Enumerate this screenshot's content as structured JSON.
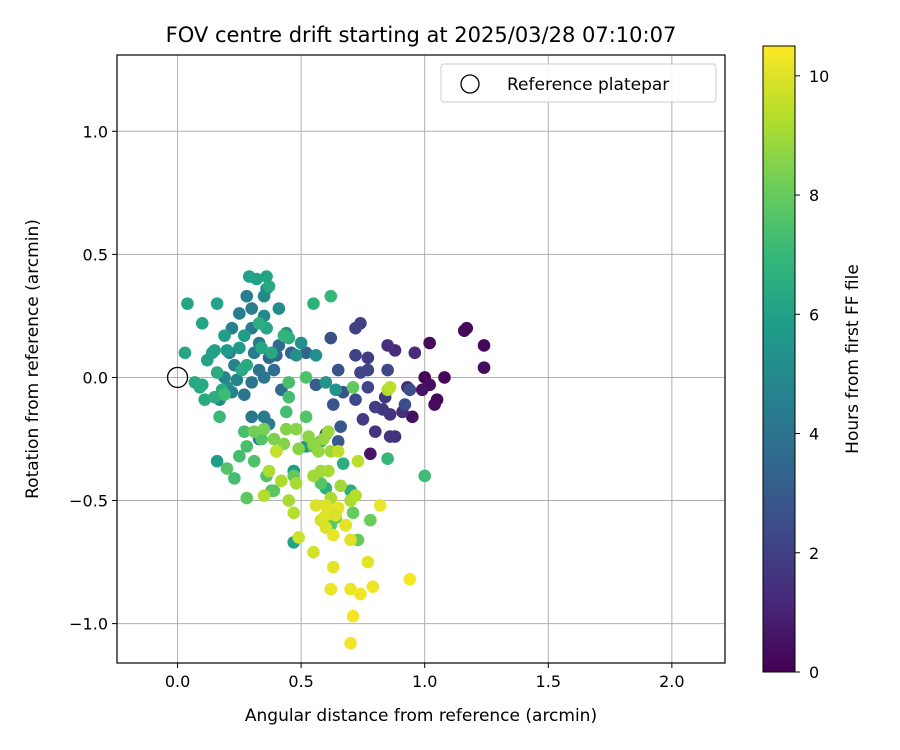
{
  "chart_data": {
    "type": "scatter",
    "title": "FOV centre drift starting at 2025/03/28 07:10:07",
    "xlabel": "Angular distance from reference (arcmin)",
    "ylabel": "Rotation from reference (arcmin)",
    "xlim": [
      -0.245,
      2.215
    ],
    "ylim": [
      -1.16,
      1.31
    ],
    "x_ticks": [
      0.0,
      0.5,
      1.0,
      1.5,
      2.0
    ],
    "x_tick_labels": [
      "0.0",
      "0.5",
      "1.0",
      "1.5",
      "2.0"
    ],
    "y_ticks": [
      -1.0,
      -0.5,
      0.0,
      0.5,
      1.0
    ],
    "y_tick_labels": [
      "−1.0",
      "−0.5",
      "0.0",
      "0.5",
      "1.0"
    ],
    "grid": true,
    "legend": {
      "placement": "top-right",
      "entries": [
        "Reference platepar"
      ]
    },
    "reference_point": {
      "x": 0.0,
      "y": 0.0
    },
    "colorbar": {
      "label": "Hours from first FF file",
      "colormap": "viridis",
      "range": [
        0,
        10.5
      ],
      "ticks": [
        0,
        2,
        4,
        6,
        8,
        10
      ],
      "tick_labels": [
        "0",
        "2",
        "4",
        "6",
        "8",
        "10"
      ]
    },
    "colormap_stops": [
      "#440154",
      "#482878",
      "#3e4989",
      "#31688e",
      "#26828e",
      "#1f9e89",
      "#35b779",
      "#6ece58",
      "#b5de2b",
      "#fde725"
    ],
    "points": [
      [
        1.0,
        0.0,
        0.1
      ],
      [
        1.05,
        -0.09,
        0.2
      ],
      [
        1.04,
        -0.11,
        0.3
      ],
      [
        1.08,
        0.0,
        0.2
      ],
      [
        1.02,
        0.14,
        0.3
      ],
      [
        1.16,
        0.19,
        0.3
      ],
      [
        1.17,
        0.2,
        0.2
      ],
      [
        1.24,
        0.13,
        0.2
      ],
      [
        1.24,
        0.04,
        0.3
      ],
      [
        0.95,
        -0.16,
        0.4
      ],
      [
        1.02,
        -0.03,
        0.4
      ],
      [
        0.99,
        -0.05,
        0.5
      ],
      [
        0.78,
        -0.31,
        0.6
      ],
      [
        0.93,
        -0.04,
        1.3
      ],
      [
        0.96,
        0.1,
        1.3
      ],
      [
        0.88,
        0.11,
        1.3
      ],
      [
        0.85,
        0.13,
        1.4
      ],
      [
        0.91,
        -0.14,
        1.4
      ],
      [
        0.88,
        -0.24,
        1.5
      ],
      [
        0.8,
        -0.22,
        1.6
      ],
      [
        0.86,
        -0.24,
        1.6
      ],
      [
        0.86,
        -0.15,
        1.6
      ],
      [
        0.83,
        -0.13,
        1.7
      ],
      [
        0.84,
        -0.08,
        1.7
      ],
      [
        0.8,
        -0.12,
        1.9
      ],
      [
        0.75,
        -0.17,
        1.8
      ],
      [
        0.77,
        0.08,
        1.9
      ],
      [
        0.72,
        0.2,
        2.0
      ],
      [
        0.74,
        0.22,
        2.0
      ],
      [
        0.72,
        0.09,
        2.1
      ],
      [
        0.74,
        0.02,
        2.2
      ],
      [
        0.77,
        0.03,
        2.2
      ],
      [
        0.77,
        -0.04,
        2.2
      ],
      [
        0.72,
        -0.09,
        2.3
      ],
      [
        0.85,
        0.03,
        2.3
      ],
      [
        0.92,
        -0.11,
        2.5
      ],
      [
        0.94,
        -0.05,
        2.5
      ],
      [
        0.62,
        0.16,
        2.6
      ],
      [
        0.65,
        0.03,
        2.7
      ],
      [
        0.67,
        -0.06,
        2.7
      ],
      [
        0.63,
        -0.11,
        2.8
      ],
      [
        0.66,
        -0.2,
        2.9
      ],
      [
        0.65,
        -0.26,
        2.9
      ],
      [
        0.6,
        -0.23,
        3.0
      ],
      [
        0.56,
        -0.03,
        3.1
      ],
      [
        0.52,
        0.1,
        3.3
      ],
      [
        0.46,
        0.1,
        3.4
      ],
      [
        0.4,
        0.09,
        3.5
      ],
      [
        0.37,
        0.08,
        3.5
      ],
      [
        0.41,
        0.13,
        3.6
      ],
      [
        0.39,
        0.03,
        3.7
      ],
      [
        0.42,
        -0.05,
        3.7
      ],
      [
        0.33,
        0.03,
        4.0
      ],
      [
        0.35,
        0.0,
        4.1
      ],
      [
        0.3,
        -0.02,
        4.1
      ],
      [
        0.27,
        -0.07,
        4.1
      ],
      [
        0.3,
        -0.16,
        4.2
      ],
      [
        0.35,
        -0.16,
        4.3
      ],
      [
        0.37,
        -0.19,
        4.3
      ],
      [
        0.33,
        -0.25,
        4.3
      ],
      [
        0.31,
        0.1,
        4.4
      ],
      [
        0.33,
        0.14,
        4.4
      ],
      [
        0.36,
        0.2,
        4.4
      ],
      [
        0.3,
        0.2,
        4.4
      ],
      [
        0.3,
        0.28,
        4.5
      ],
      [
        0.28,
        0.33,
        4.5
      ],
      [
        0.25,
        0.26,
        4.5
      ],
      [
        0.22,
        0.2,
        4.6
      ],
      [
        0.21,
        0.1,
        4.7
      ],
      [
        0.23,
        0.05,
        4.7
      ],
      [
        0.22,
        -0.06,
        4.7
      ],
      [
        0.24,
        -0.01,
        4.8
      ],
      [
        0.19,
        0.0,
        4.8
      ],
      [
        0.17,
        -0.09,
        4.9
      ],
      [
        0.2,
        -0.04,
        4.9
      ],
      [
        0.35,
        0.33,
        5.0
      ],
      [
        0.36,
        0.36,
        5.0
      ],
      [
        0.35,
        0.25,
        5.0
      ],
      [
        0.41,
        0.28,
        5.1
      ],
      [
        0.44,
        0.18,
        5.2
      ],
      [
        0.5,
        0.14,
        5.3
      ],
      [
        0.48,
        0.09,
        5.3
      ],
      [
        0.56,
        0.09,
        5.3
      ],
      [
        0.6,
        -0.02,
        5.4
      ],
      [
        0.64,
        -0.05,
        5.4
      ],
      [
        0.52,
        -0.28,
        5.5
      ],
      [
        0.47,
        -0.38,
        5.8
      ],
      [
        0.2,
        0.11,
        5.7
      ],
      [
        0.25,
        0.12,
        5.7
      ],
      [
        0.27,
        0.17,
        5.8
      ],
      [
        0.19,
        0.17,
        5.9
      ],
      [
        0.15,
        0.11,
        6.0
      ],
      [
        0.12,
        0.07,
        6.0
      ],
      [
        0.14,
        0.1,
        6.0
      ],
      [
        0.1,
        0.22,
        6.1
      ],
      [
        0.04,
        0.3,
        6.1
      ],
      [
        0.16,
        0.3,
        6.1
      ],
      [
        0.03,
        0.1,
        6.2
      ],
      [
        0.1,
        -0.03,
        6.2
      ],
      [
        0.09,
        -0.04,
        6.3
      ],
      [
        0.07,
        -0.02,
        6.3
      ],
      [
        0.11,
        -0.09,
        6.4
      ],
      [
        0.15,
        -0.08,
        6.5
      ],
      [
        0.16,
        0.02,
        6.5
      ],
      [
        0.18,
        -0.05,
        6.5
      ],
      [
        0.26,
        0.03,
        6.4
      ],
      [
        0.28,
        0.05,
        6.4
      ],
      [
        0.34,
        0.12,
        6.2
      ],
      [
        0.36,
        0.2,
        6.2
      ],
      [
        0.38,
        0.1,
        6.3
      ],
      [
        0.32,
        0.4,
        6.0
      ],
      [
        0.36,
        0.41,
        6.1
      ],
      [
        0.37,
        0.37,
        6.3
      ],
      [
        0.29,
        0.41,
        6.0
      ],
      [
        0.33,
        0.22,
        6.6
      ],
      [
        0.45,
        0.16,
        6.6
      ],
      [
        0.55,
        0.3,
        6.7
      ],
      [
        0.62,
        0.33,
        7.0
      ],
      [
        0.43,
        0.17,
        6.9
      ],
      [
        0.47,
        -0.67,
        6.1
      ],
      [
        0.58,
        -0.26,
        6.5
      ],
      [
        0.6,
        -0.45,
        6.6
      ],
      [
        0.67,
        -0.35,
        6.6
      ],
      [
        0.7,
        -0.46,
        6.5
      ],
      [
        0.85,
        -0.33,
        7.0
      ],
      [
        1.0,
        -0.4,
        7.2
      ],
      [
        0.16,
        -0.34,
        5.9
      ],
      [
        0.17,
        -0.16,
        7.1
      ],
      [
        0.19,
        -0.07,
        7.2
      ],
      [
        0.23,
        -0.41,
        7.3
      ],
      [
        0.25,
        -0.32,
        7.3
      ],
      [
        0.27,
        -0.22,
        7.4
      ],
      [
        0.28,
        -0.28,
        7.4
      ],
      [
        0.31,
        -0.34,
        7.5
      ],
      [
        0.34,
        -0.25,
        7.6
      ],
      [
        0.36,
        -0.4,
        7.6
      ],
      [
        0.38,
        -0.46,
        7.5
      ],
      [
        0.44,
        -0.14,
        7.3
      ],
      [
        0.45,
        -0.08,
        7.3
      ],
      [
        0.45,
        -0.02,
        7.4
      ],
      [
        0.52,
        0.0,
        7.5
      ],
      [
        0.52,
        -0.16,
        7.6
      ],
      [
        0.55,
        -0.28,
        7.7
      ],
      [
        0.58,
        -0.43,
        7.7
      ],
      [
        0.62,
        -0.6,
        7.8
      ],
      [
        0.64,
        -0.57,
        7.8
      ],
      [
        0.68,
        -0.6,
        7.9
      ],
      [
        0.71,
        -0.55,
        8.0
      ],
      [
        0.73,
        -0.66,
        8.0
      ],
      [
        0.78,
        -0.58,
        8.1
      ],
      [
        0.71,
        -0.04,
        7.9
      ],
      [
        0.2,
        -0.37,
        7.6
      ],
      [
        0.28,
        -0.49,
        7.8
      ],
      [
        0.39,
        -0.46,
        7.8
      ],
      [
        0.47,
        -0.4,
        7.9
      ],
      [
        0.31,
        -0.22,
        8.2
      ],
      [
        0.35,
        -0.21,
        8.3
      ],
      [
        0.39,
        -0.25,
        8.4
      ],
      [
        0.4,
        -0.3,
        8.3
      ],
      [
        0.43,
        -0.27,
        8.5
      ],
      [
        0.44,
        -0.21,
        8.5
      ],
      [
        0.48,
        -0.21,
        8.6
      ],
      [
        0.49,
        -0.29,
        8.6
      ],
      [
        0.53,
        -0.24,
        8.7
      ],
      [
        0.55,
        -0.27,
        8.7
      ],
      [
        0.57,
        -0.3,
        8.8
      ],
      [
        0.59,
        -0.25,
        8.8
      ],
      [
        0.61,
        -0.22,
        8.9
      ],
      [
        0.62,
        -0.3,
        8.9
      ],
      [
        0.55,
        -0.4,
        9.0
      ],
      [
        0.58,
        -0.38,
        9.0
      ],
      [
        0.48,
        -0.43,
        9.1
      ],
      [
        0.45,
        -0.5,
        9.1
      ],
      [
        0.42,
        -0.42,
        9.2
      ],
      [
        0.37,
        -0.38,
        9.2
      ],
      [
        0.35,
        -0.48,
        9.3
      ],
      [
        0.47,
        -0.55,
        9.3
      ],
      [
        0.62,
        -0.49,
        9.2
      ],
      [
        0.61,
        -0.38,
        9.1
      ],
      [
        0.66,
        -0.44,
        9.0
      ],
      [
        0.7,
        -0.5,
        9.2
      ],
      [
        0.72,
        -0.48,
        9.3
      ],
      [
        0.85,
        -0.05,
        9.2
      ],
      [
        0.86,
        -0.04,
        9.4
      ],
      [
        0.73,
        -0.34,
        9.4
      ],
      [
        0.65,
        -0.3,
        9.5
      ],
      [
        0.4,
        -0.3,
        9.6
      ],
      [
        0.49,
        -0.65,
        9.7
      ],
      [
        0.55,
        -0.71,
        9.8
      ],
      [
        0.58,
        -0.58,
        9.8
      ],
      [
        0.6,
        -0.61,
        9.9
      ],
      [
        0.6,
        -0.52,
        10.0
      ],
      [
        0.62,
        -0.54,
        10.0
      ],
      [
        0.63,
        -0.77,
        10.1
      ],
      [
        0.65,
        -0.53,
        10.1
      ],
      [
        0.62,
        -0.86,
        10.2
      ],
      [
        0.7,
        -0.86,
        10.2
      ],
      [
        0.74,
        -0.88,
        10.3
      ],
      [
        0.79,
        -0.85,
        10.2
      ],
      [
        0.77,
        -0.75,
        10.1
      ],
      [
        0.7,
        -0.66,
        10.0
      ],
      [
        0.71,
        -0.97,
        10.3
      ],
      [
        0.7,
        -1.08,
        10.3
      ],
      [
        0.94,
        -0.82,
        10.4
      ],
      [
        0.82,
        -0.52,
        10.2
      ],
      [
        0.63,
        -0.64,
        10.2
      ],
      [
        0.56,
        -0.52,
        9.9
      ],
      [
        0.6,
        -0.56,
        10.0
      ],
      [
        0.64,
        -0.56,
        9.9
      ],
      [
        0.68,
        -0.6,
        10.1
      ]
    ]
  }
}
